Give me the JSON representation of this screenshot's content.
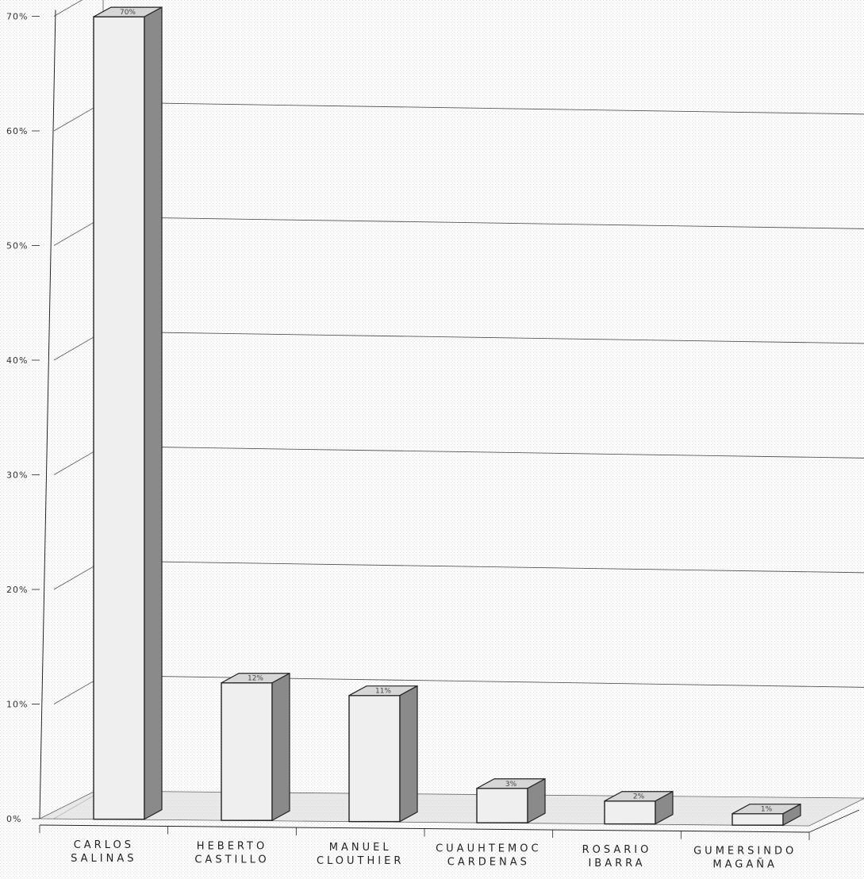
{
  "chart_data": {
    "type": "bar",
    "categories": [
      [
        "CARLOS",
        "SALINAS"
      ],
      [
        "HEBERTO",
        "CASTILLO"
      ],
      [
        "MANUEL",
        "CLOUTHIER"
      ],
      [
        "CUAUHTEMOC",
        "CARDENAS"
      ],
      [
        "ROSARIO",
        "IBARRA"
      ],
      [
        "GUMERSINDO",
        "MAGAÑA"
      ]
    ],
    "values": [
      70,
      12,
      11,
      3,
      2,
      1
    ],
    "value_labels": [
      "70%",
      "12%",
      "11%",
      "3%",
      "2%",
      "1%"
    ],
    "y_ticks": [
      "0%",
      "10%",
      "20%",
      "30%",
      "40%",
      "50%",
      "60%",
      "70%"
    ],
    "ylim": [
      0,
      70
    ],
    "grid": true,
    "three_d": true,
    "colors": {
      "front": "#efefef",
      "top": "#d6d6d6",
      "side": "#8a8a8a",
      "floor": "#e0e0e0",
      "grid": "#555555",
      "outline": "#222222"
    }
  }
}
